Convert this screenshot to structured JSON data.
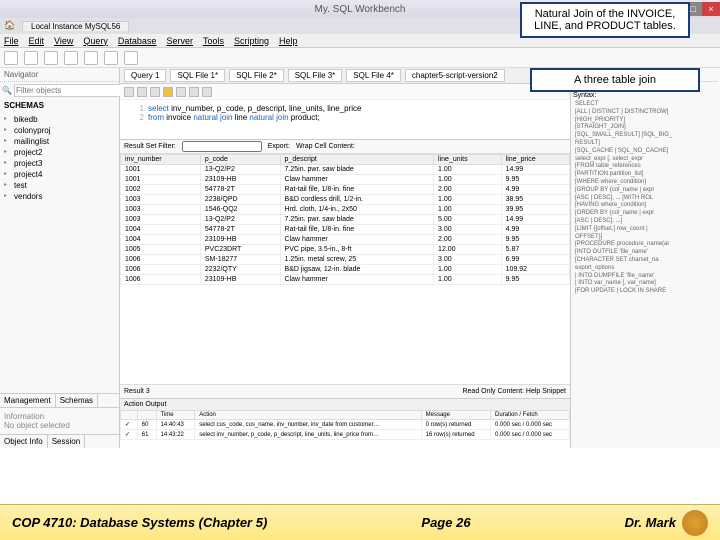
{
  "window": {
    "title": "My. SQL Workbench"
  },
  "annotations": {
    "box1": "Natural Join of the INVOICE, LINE, and PRODUCT tables.",
    "box2": "A three table join"
  },
  "tab": {
    "instance": "Local Instance MySQL56"
  },
  "menu": [
    "File",
    "Edit",
    "View",
    "Query",
    "Database",
    "Server",
    "Tools",
    "Scripting",
    "Help"
  ],
  "sidebar": {
    "navigator": "Navigator",
    "filter_placeholder": "Filter objects",
    "schemas_label": "SCHEMAS",
    "schemas": [
      "bikedb",
      "colonyproj",
      "mailinglist",
      "project2",
      "project3",
      "project4",
      "test",
      "vendors"
    ],
    "tabs": {
      "mgmt": "Management",
      "schemas": "Schemas"
    },
    "info_header": "Information",
    "info_text": "No object selected",
    "bottom": {
      "objinfo": "Object Info",
      "session": "Session"
    }
  },
  "query": {
    "tabs": [
      "Query 1",
      "SQL File 1*",
      "SQL File 2*",
      "SQL File 3*",
      "SQL File 4*",
      "chapter5-script-version2"
    ],
    "line1_num": "1",
    "line2_num": "2",
    "sql_select": "select",
    "sql_cols": " inv_number, p_code, p_descript, line_units, line_price",
    "sql_from": "from",
    "sql_table1": " invoice ",
    "sql_nj": "natural join",
    "sql_table2": " line ",
    "sql_nj2": "natural join",
    "sql_table3": " product;"
  },
  "result": {
    "filter_label": "Result Set Filter:",
    "export": "Export:",
    "wrap": "Wrap Cell Content:",
    "cols": [
      "inv_number",
      "p_code",
      "p_descript",
      "line_units",
      "line_price"
    ],
    "rows": [
      [
        "1001",
        "13-Q2/P2",
        "7.25in. pwr. saw blade",
        "1.00",
        "14.99"
      ],
      [
        "1001",
        "23109-HB",
        "Claw hammer",
        "1.00",
        "9.95"
      ],
      [
        "1002",
        "54778-2T",
        "Rat-tail file, 1/8-in. fine",
        "2.00",
        "4.99"
      ],
      [
        "1003",
        "2238/QPD",
        "B&D cordless drill, 1/2-in.",
        "1.00",
        "38.95"
      ],
      [
        "1003",
        "1546-QQ2",
        "Hrd. cloth, 1/4-in., 2x50",
        "1.00",
        "39.95"
      ],
      [
        "1003",
        "13-Q2/P2",
        "7.25in. pwr. saw blade",
        "5.00",
        "14.99"
      ],
      [
        "1004",
        "54778-2T",
        "Rat-tail file, 1/8-in. fine",
        "3.00",
        "4.99"
      ],
      [
        "1004",
        "23109-HB",
        "Claw hammer",
        "2.00",
        "9.95"
      ],
      [
        "1005",
        "PVC23DRT",
        "PVC pipe, 3.5-in., 8-ft",
        "12.00",
        "5.87"
      ],
      [
        "1006",
        "SM-18277",
        "1.25in. metal screw, 25",
        "3.00",
        "6.99"
      ],
      [
        "1006",
        "2232/QTY",
        "B&D jigsaw, 12-in. blade",
        "1.00",
        "109.92"
      ],
      [
        "1006",
        "23109-HB",
        "Claw hammer",
        "1.00",
        "9.95"
      ]
    ],
    "footer_left": "Result 3",
    "footer_right": "Read Only   Content:   Help   Snippet"
  },
  "right": {
    "topic_label": "Topic:",
    "topic": "SELECT",
    "syntax_label": "Syntax:",
    "lines": [
      "SELECT",
      "  [ALL | DISTINCT | DISTINCTROW]",
      "  [HIGH_PRIORITY]",
      "  [STRAIGHT_JOIN]",
      "  [SQL_SMALL_RESULT] [SQL_BIG_",
      "RESULT]",
      "  [SQL_CACHE | SQL_NO_CACHE]",
      "  select_expr [, select_expr",
      "  [FROM table_references",
      "  [PARTITION partition_list]",
      "  [WHERE where_condition]",
      "  [GROUP BY {col_name | expr",
      "    [ASC | DESC], ... [WITH ROL",
      "  [HAVING where_condition]",
      "  [ORDER BY {col_name | expr",
      "    [ASC | DESC], ...]",
      "  [LIMIT {[offset,] row_count |",
      "OFFSET}]",
      "  [PROCEDURE procedure_name(ar",
      "  [INTO OUTFILE 'file_name'",
      "    [CHARACTER SET charset_na",
      "    export_options",
      "   | INTO DUMPFILE 'file_name'",
      "   | INTO var_name [, var_name]",
      "  [FOR UPDATE | LOCK IN SHARE"
    ]
  },
  "action": {
    "header": "Action Output",
    "cols": [
      "",
      "",
      "Time",
      "Action",
      "Message",
      "Duration / Fetch"
    ],
    "rows": [
      [
        "✓",
        "60",
        "14:40:43",
        "select cus_code, cus_name, inv_number, inv_date from customer…",
        "0 row(s) returned",
        "0.000 sec / 0.000 sec"
      ],
      [
        "✓",
        "61",
        "14:43:22",
        "select inv_number, p_code, p_descript, line_units, line_price from…",
        "16 row(s) returned",
        "0.000 sec / 0.000 sec"
      ]
    ]
  },
  "footer": {
    "left": "COP 4710: Database Systems  (Chapter 5)",
    "center": "Page 26",
    "right": "Dr. Mark"
  }
}
